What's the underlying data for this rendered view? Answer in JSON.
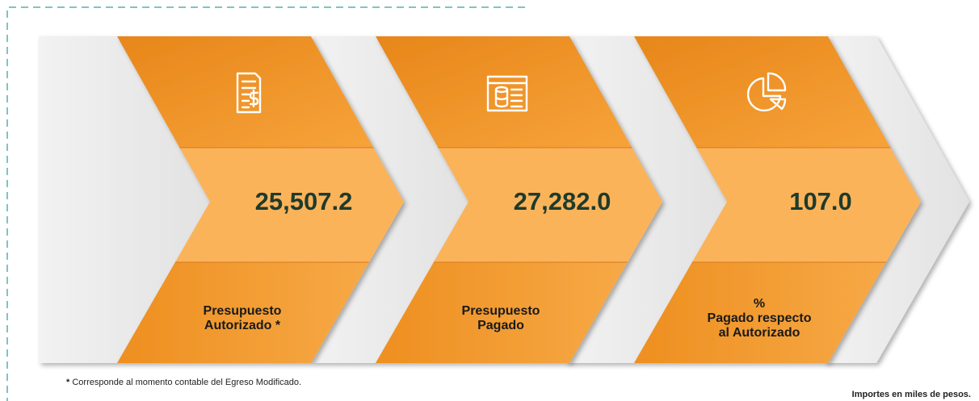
{
  "panels": [
    {
      "value": "25,507.2",
      "label": [
        "Presupuesto",
        "Autorizado *"
      ]
    },
    {
      "value": "27,282.0",
      "label": [
        "Presupuesto",
        "Pagado"
      ]
    },
    {
      "value": "107.0",
      "label": [
        "%",
        "Pagado respecto",
        "al Autorizado"
      ]
    }
  ],
  "footnote": {
    "mark": "*",
    "text": "Corresponde al momento contable del Egreso Modificado."
  },
  "units_note": "Importes en miles de pesos."
}
